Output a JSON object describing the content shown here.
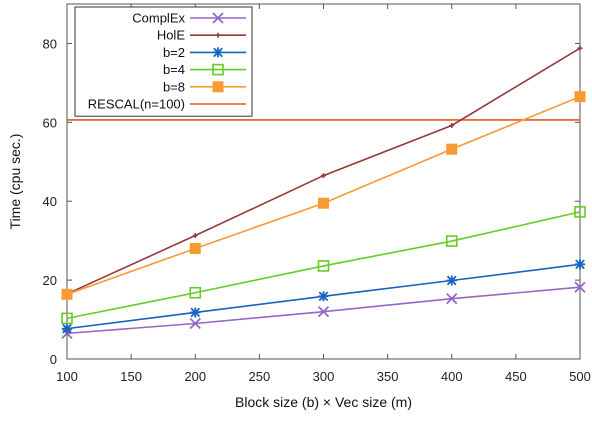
{
  "chart_data": {
    "type": "line",
    "title": "",
    "xlabel": "Block size (b) × Vec size (m)",
    "ylabel": "Time (cpu sec.)",
    "xlim": [
      100,
      500
    ],
    "ylim": [
      0,
      90
    ],
    "xticks": [
      100,
      150,
      200,
      250,
      300,
      350,
      400,
      450,
      500
    ],
    "yticks": [
      0,
      20,
      40,
      60,
      80
    ],
    "grid": false,
    "legend_position": "top-left",
    "series": [
      {
        "name": "ComplEx",
        "color": "#9467c8",
        "marker": "x",
        "x": [
          100,
          200,
          300,
          400,
          500
        ],
        "y": [
          6.5,
          9.0,
          12.0,
          15.3,
          18.2
        ]
      },
      {
        "name": "HolE",
        "color": "#953a3a",
        "marker": "plus",
        "x": [
          100,
          200,
          300,
          400,
          500
        ],
        "y": [
          16.5,
          31.3,
          46.5,
          59.2,
          78.8
        ]
      },
      {
        "name": "b=2",
        "color": "#1565c0",
        "marker": "star",
        "x": [
          100,
          200,
          300,
          400,
          500
        ],
        "y": [
          7.7,
          11.8,
          15.9,
          19.9,
          24.0
        ]
      },
      {
        "name": "b=4",
        "color": "#66cc22",
        "marker": "open-square",
        "x": [
          100,
          200,
          300,
          400,
          500
        ],
        "y": [
          10.3,
          16.8,
          23.6,
          29.9,
          37.3
        ]
      },
      {
        "name": "b=8",
        "color": "#f79a32",
        "marker": "filled-square",
        "x": [
          100,
          200,
          300,
          400,
          500
        ],
        "y": [
          16.4,
          28.0,
          39.5,
          53.2,
          66.5
        ]
      },
      {
        "name": "RESCAL(n=100)",
        "color": "#e8552a",
        "marker": "none",
        "type": "hline",
        "y": 60.6
      }
    ]
  }
}
